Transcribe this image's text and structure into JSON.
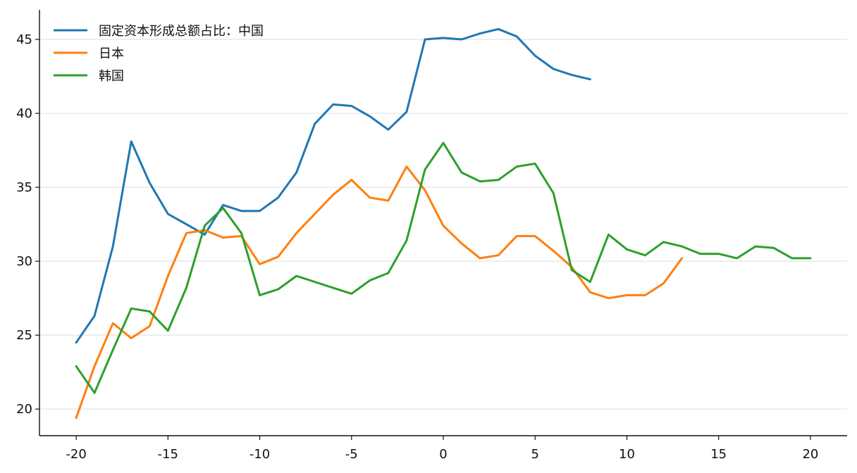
{
  "chart_data": {
    "type": "line",
    "xlim": [
      -22,
      22
    ],
    "ylim": [
      18.2,
      47
    ],
    "x_ticks": [
      -20,
      -15,
      -10,
      -5,
      0,
      5,
      10,
      15,
      20
    ],
    "y_ticks": [
      20,
      25,
      30,
      35,
      40,
      45
    ],
    "grid": "horizontal",
    "legend_position": "top-left",
    "series": [
      {
        "name": "固定资本形成总额占比：中国",
        "color": "#1f77b4",
        "x": [
          -20,
          -19,
          -18,
          -17,
          -16,
          -15,
          -14,
          -13,
          -12,
          -11,
          -10,
          -9,
          -8,
          -7,
          -6,
          -5,
          -4,
          -3,
          -2,
          -1,
          0,
          1,
          2,
          3,
          4,
          5,
          6,
          7,
          8
        ],
        "y": [
          24.5,
          26.3,
          31.0,
          38.1,
          35.3,
          33.2,
          32.5,
          31.8,
          33.8,
          33.4,
          33.4,
          34.3,
          36.0,
          39.3,
          40.6,
          40.5,
          39.8,
          38.9,
          40.1,
          45.0,
          45.1,
          45.0,
          45.4,
          45.7,
          45.2,
          43.9,
          43.0,
          42.6,
          42.3
        ]
      },
      {
        "name": "日本",
        "color": "#ff7f0e",
        "x": [
          -20,
          -19,
          -18,
          -17,
          -16,
          -15,
          -14,
          -13,
          -12,
          -11,
          -10,
          -9,
          -8,
          -7,
          -6,
          -5,
          -4,
          -3,
          -2,
          -1,
          0,
          1,
          2,
          3,
          4,
          5,
          6,
          7,
          8,
          9,
          10,
          11,
          12,
          13
        ],
        "y": [
          19.4,
          22.9,
          25.8,
          24.8,
          25.6,
          29.0,
          31.9,
          32.1,
          31.6,
          31.7,
          29.8,
          30.3,
          31.9,
          33.2,
          34.5,
          35.5,
          34.3,
          34.1,
          36.4,
          34.8,
          32.4,
          31.2,
          30.2,
          30.4,
          31.7,
          31.7,
          30.7,
          29.6,
          27.9,
          27.5,
          27.7,
          27.7,
          28.5,
          30.2
        ]
      },
      {
        "name": "韩国",
        "color": "#2ca02c",
        "x": [
          -20,
          -19,
          -18,
          -17,
          -16,
          -15,
          -14,
          -13,
          -12,
          -11,
          -10,
          -9,
          -8,
          -7,
          -6,
          -5,
          -4,
          -3,
          -2,
          -1,
          0,
          1,
          2,
          3,
          4,
          5,
          6,
          7,
          8,
          9,
          10,
          11,
          12,
          13,
          14,
          15,
          16,
          17,
          18,
          19,
          20
        ],
        "y": [
          22.9,
          21.1,
          24.0,
          26.8,
          26.6,
          25.3,
          28.2,
          32.4,
          33.6,
          31.9,
          27.7,
          28.1,
          29.0,
          28.6,
          28.2,
          27.8,
          28.7,
          29.2,
          31.4,
          36.2,
          38.0,
          36.0,
          35.4,
          35.5,
          36.4,
          36.6,
          34.6,
          29.4,
          28.6,
          31.8,
          30.8,
          30.4,
          31.3,
          31.0,
          30.5,
          30.5,
          30.2,
          31.0,
          30.9,
          30.2,
          30.2
        ]
      }
    ]
  }
}
